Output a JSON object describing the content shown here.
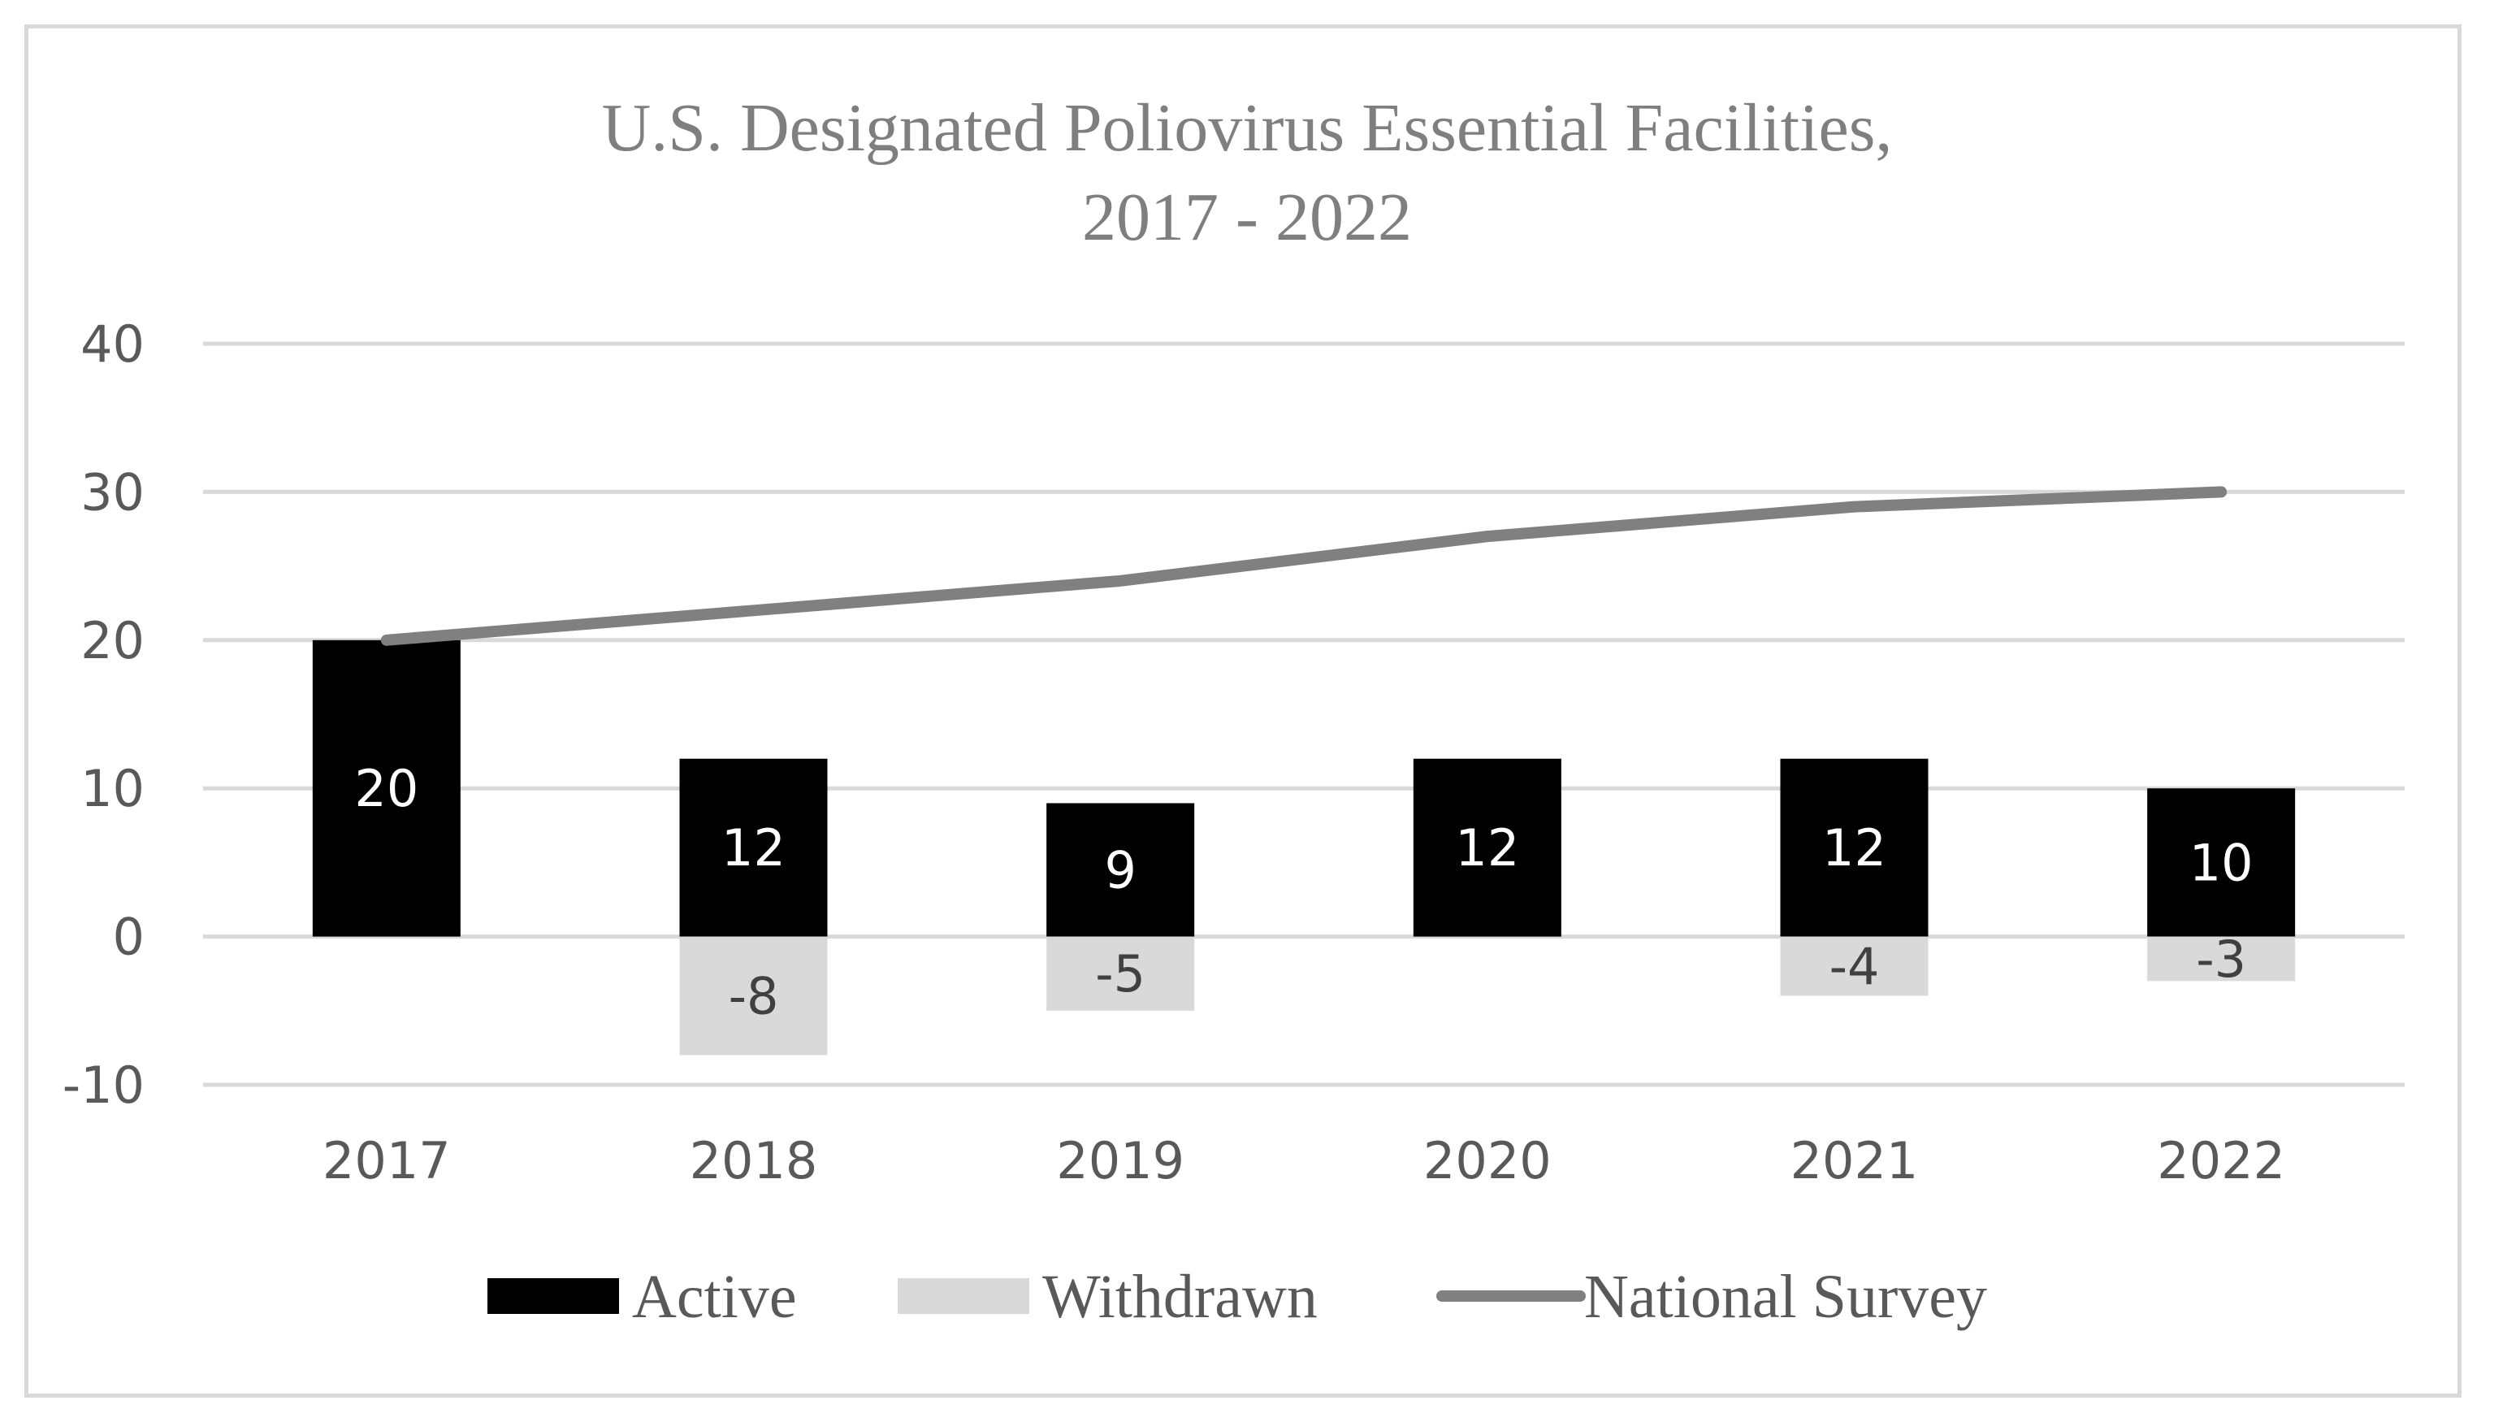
{
  "chart_data": {
    "type": "bar",
    "title": "U.S. Designated Poliovirus Essential Facilities,",
    "subtitle": "2017 - 2022",
    "categories": [
      "2017",
      "2018",
      "2019",
      "2020",
      "2021",
      "2022"
    ],
    "series": [
      {
        "name": "Active",
        "kind": "bar",
        "color": "#000000",
        "label_color": "#ffffff",
        "values": [
          20,
          12,
          9,
          12,
          12,
          10
        ],
        "labels": [
          "20",
          "12",
          "9",
          "12",
          "12",
          "10"
        ]
      },
      {
        "name": "Withdrawn",
        "kind": "bar",
        "color": "#d9d9d9",
        "label_color": "#404040",
        "values": [
          0,
          -8,
          -5,
          0,
          -4,
          -3
        ],
        "labels": [
          "",
          "-8",
          "-5",
          "",
          "-4",
          "-3"
        ]
      },
      {
        "name": "National Survey",
        "kind": "line",
        "color": "#808080",
        "values": [
          20,
          22,
          24,
          27,
          29,
          30
        ]
      }
    ],
    "y_ticks": [
      "-10",
      "0",
      "10",
      "20",
      "30",
      "40"
    ],
    "ylim": [
      -10,
      40
    ],
    "xlabel": "",
    "ylabel": "",
    "grid": true,
    "legend_position": "bottom"
  }
}
